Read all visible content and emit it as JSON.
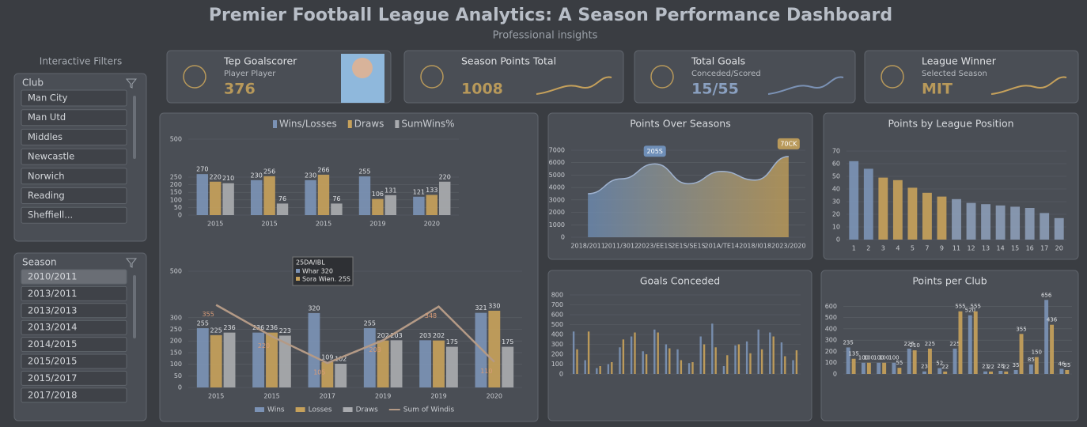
{
  "header": {
    "title": "Premier Football League Analytics: A Season Performance Dashboard",
    "subtitle": "Professional insights"
  },
  "filters": {
    "title": "Interactive Filters",
    "club": {
      "label": "Club",
      "items": [
        "Man City",
        "Man Utd",
        "Middles",
        "Newcastle",
        "Norwich",
        "Reading",
        "Sheffiell..."
      ]
    },
    "season": {
      "label": "Season",
      "items": [
        "2010/2011",
        "2013/2011",
        "2013/2013",
        "2013/2014",
        "2014/2015",
        "2015/2015",
        "2015/2017",
        "2017/2018"
      ]
    }
  },
  "kpis": [
    {
      "title": "Tep Goalscorer",
      "subtitle": "Player Player",
      "value": 376
    },
    {
      "title": "Season Points Total",
      "value": 1008
    },
    {
      "title": "Total Goals",
      "subtitle": "Conceded/Scored",
      "value": "15/55"
    },
    {
      "title": "League Winner",
      "subtitle": "Selected Season",
      "value": "MIT"
    }
  ],
  "chart_data": [
    {
      "type": "bar",
      "categories": [
        "2015",
        "2015",
        "2015",
        "2019",
        "2020"
      ],
      "series": [
        {
          "name": "Wins/Losses",
          "color": "#7b92b5",
          "values": [
            270,
            230,
            230,
            255,
            121
          ]
        },
        {
          "name": "Draws",
          "color": "#c6a15b",
          "values": [
            220,
            256,
            266,
            106,
            133
          ]
        },
        {
          "name": "SumWins%",
          "color": "#a9abaf",
          "values": [
            210,
            76,
            76,
            131,
            220
          ]
        }
      ],
      "ylim": [
        0,
        500
      ],
      "yticks": [
        0,
        50,
        100,
        150,
        200,
        250,
        500
      ],
      "grid": true
    },
    {
      "type": "combo",
      "categories": [
        "2015",
        "2015",
        "2017",
        "2019",
        "2019",
        "2020"
      ],
      "series": [
        {
          "name": "Wins",
          "color": "#7b92b5",
          "values": [
            255,
            236,
            320,
            255,
            203,
            321
          ]
        },
        {
          "name": "Losses",
          "color": "#c6a15b",
          "values": [
            225,
            236,
            109,
            202,
            202,
            330
          ]
        },
        {
          "name": "Draws",
          "color": "#a9abaf",
          "values": [
            236,
            223,
            102,
            203,
            175,
            175
          ]
        },
        {
          "name": "Sum of Windis",
          "color": "#b49a86",
          "type": "line",
          "values": [
            355,
            220,
            105,
            203,
            348,
            110
          ]
        }
      ],
      "ylim": [
        0,
        500
      ],
      "yticks": [
        0,
        50,
        100,
        150,
        200,
        250,
        300,
        500
      ],
      "grid": true,
      "legend": "bottom",
      "tooltip": {
        "title": "25DA/IBL",
        "lines": [
          "Whar 320",
          "Sora Wien. 25S"
        ]
      }
    },
    {
      "type": "area",
      "title": "Points Over Seasons",
      "categories": [
        "2018/2011",
        "2011/3012",
        "2023/EE1S",
        "2E1S/SE1S",
        "201A/TE14",
        "2018/I018",
        "2023/2020"
      ],
      "values": [
        3500,
        4700,
        5900,
        4300,
        5300,
        4600,
        6500
      ],
      "colors": [
        "#6f8fb8",
        "#c9a45a"
      ],
      "ylim": [
        0,
        7000
      ],
      "yticks": [
        0,
        1000,
        2000,
        3000,
        4000,
        5000,
        6000,
        7000
      ],
      "grid": true,
      "annotations": [
        {
          "label": "205S",
          "category": "2023/EE1S"
        },
        {
          "label": "70CK",
          "category": "2023/2020"
        }
      ]
    },
    {
      "type": "bar",
      "title": "Points by League Position",
      "categories": [
        "1",
        "2",
        "3",
        "4",
        "5",
        "7",
        "9",
        "11",
        "12",
        "13",
        "14",
        "15",
        "16",
        "17",
        "20"
      ],
      "values": [
        62,
        56,
        49,
        47,
        41,
        37,
        34,
        32,
        29,
        28,
        27,
        26,
        25,
        21,
        17
      ],
      "colors": [
        "#7b92b5",
        "#7b92b5",
        "#c6a15b",
        "#c6a15b",
        "#c6a15b",
        "#c6a15b",
        "#c6a15b",
        "#8a9bb5",
        "#8a9bb5",
        "#8a9bb5",
        "#8a9bb5",
        "#8a9bb5",
        "#8a9bb5",
        "#8a9bb5",
        "#8a9bb5"
      ],
      "ylim": [
        0,
        75
      ],
      "yticks": [
        0,
        10,
        20,
        30,
        40,
        50,
        60,
        70
      ],
      "grid": true
    },
    {
      "type": "bar",
      "title": "Goals Conceded",
      "categories": [
        null,
        null,
        null,
        null,
        null,
        null,
        null,
        null,
        null,
        null,
        null,
        null,
        null,
        null,
        null,
        null,
        null,
        null,
        null,
        null
      ],
      "series": [
        {
          "color": "#7b92b5",
          "values": [
            430,
            140,
            60,
            100,
            270,
            380,
            230,
            450,
            300,
            250,
            110,
            380,
            510,
            80,
            290,
            330,
            450,
            420,
            320,
            140
          ]
        },
        {
          "color": "#c6a15b",
          "values": [
            250,
            430,
            80,
            120,
            350,
            420,
            200,
            420,
            260,
            140,
            120,
            300,
            270,
            190,
            300,
            210,
            250,
            380,
            180,
            240
          ]
        }
      ],
      "ylim": [
        0,
        800
      ],
      "yticks": [
        0,
        100,
        200,
        300,
        400,
        500,
        600,
        700,
        800
      ],
      "grid": true
    },
    {
      "type": "bar",
      "title": "Points per Club",
      "categories": [
        null,
        null,
        null,
        null,
        null,
        null,
        null,
        null,
        null,
        null,
        null,
        null,
        null,
        null,
        null
      ],
      "series": [
        {
          "color": "#7b92b5",
          "values": [
            235,
            100,
            100,
            100,
            225,
            23,
            52,
            225,
            520,
            23,
            28,
            35,
            85,
            656,
            46
          ]
        },
        {
          "color": "#c6a15b",
          "values": [
            135,
            100,
            100,
            55,
            210,
            225,
            22,
            555,
            555,
            22,
            22,
            355,
            150,
            436,
            35
          ]
        }
      ],
      "ylim": [
        0,
        700
      ],
      "yticks": [
        0,
        100,
        200,
        300,
        400,
        500,
        600
      ],
      "grid": true,
      "labels": true
    }
  ]
}
